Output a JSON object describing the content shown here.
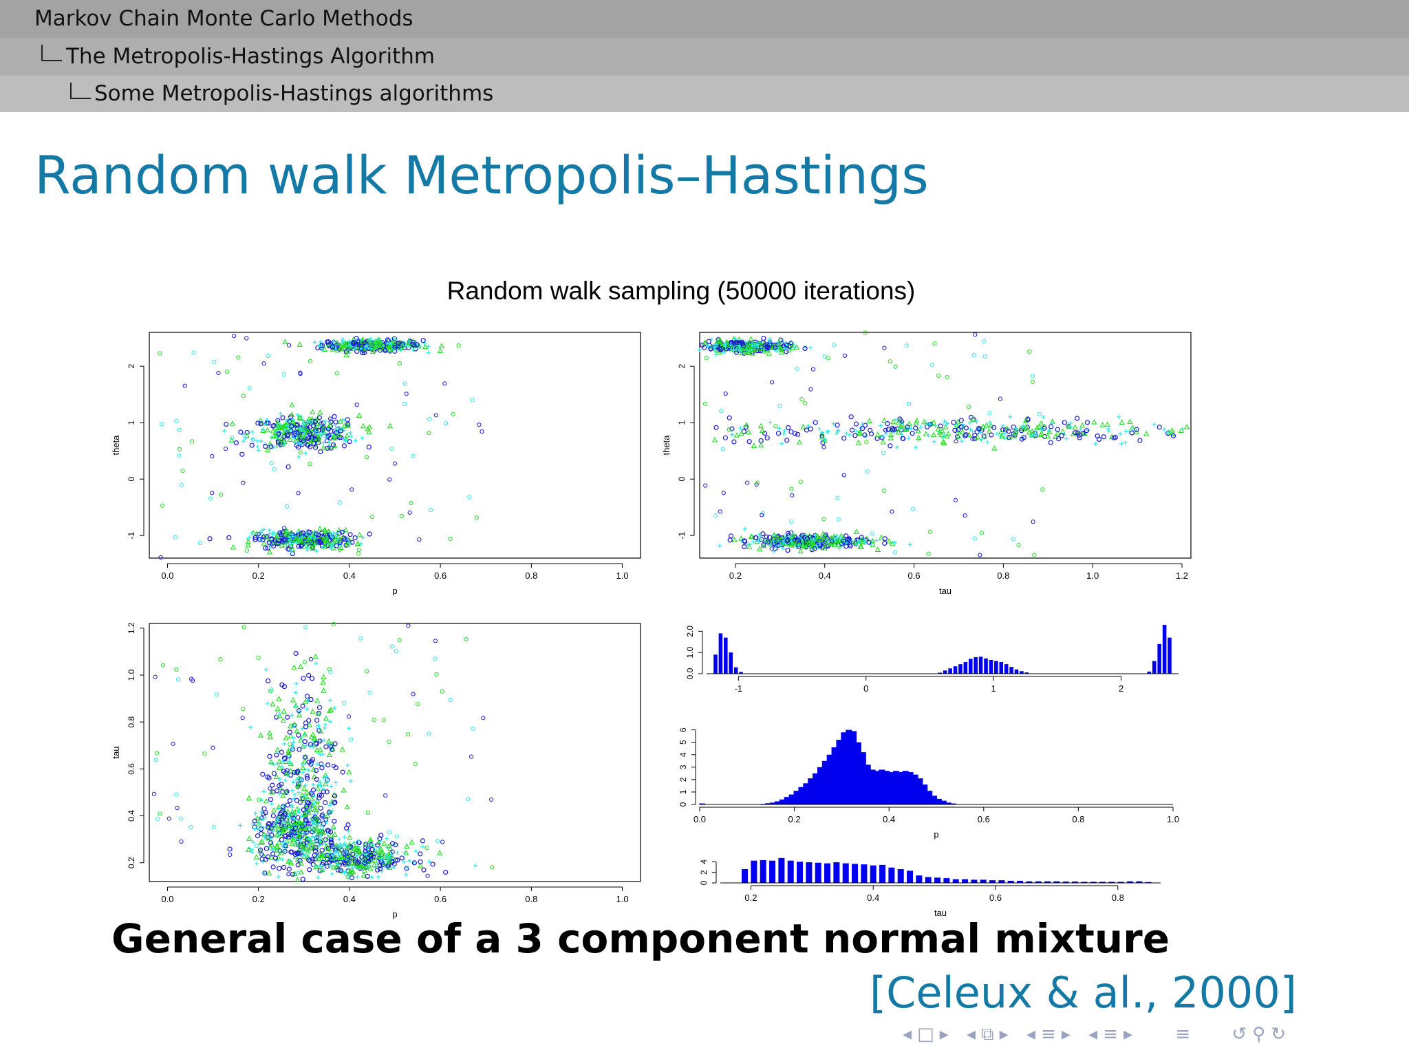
{
  "header": {
    "section": "Markov Chain Monte Carlo Methods",
    "subsection": "The Metropolis-Hastings Algorithm",
    "subsubsection": "Some Metropolis-Hastings algorithms"
  },
  "slide_title": "Random walk Metropolis–Hastings",
  "subtitle": "General case of a 3 component normal mixture",
  "citation": "[Celeux & al., 2000]",
  "nav_icons": [
    "nav-prev-frame-icon",
    "nav-frame-icon",
    "nav-next-frame-icon",
    "nav-prev-section-icon",
    "nav-section-icon",
    "nav-next-section-icon",
    "nav-prev-subsection-icon",
    "nav-subsection-icon",
    "nav-next-subsection-icon",
    "nav-prev-slide-icon",
    "nav-slide-icon",
    "nav-next-slide-icon",
    "nav-toc-icon",
    "nav-undo-icon",
    "nav-search-icon",
    "nav-redo-icon"
  ],
  "colors": {
    "series1": "#1a1ad6",
    "series2": "#22dd22",
    "series3": "#33e6e6",
    "bars": "#0000ee",
    "title": "#147aa5"
  },
  "figure_title": "Random walk sampling (50000 iterations)",
  "chart_data": [
    {
      "type": "scatter",
      "xlabel": "p",
      "ylabel": "theta",
      "xlim": [
        -0.04,
        1.04
      ],
      "ylim": [
        -1.4,
        2.6
      ],
      "xticks": [
        "0.0",
        "0.2",
        "0.4",
        "0.6",
        "0.8",
        "1.0"
      ],
      "yticks": [
        "-1",
        "0",
        "1",
        "2"
      ],
      "clusters": [
        {
          "x": 0.45,
          "y": 2.37,
          "sx": 0.055,
          "sy": 0.05
        },
        {
          "x": 0.3,
          "y": 0.82,
          "sx": 0.06,
          "sy": 0.15
        },
        {
          "x": 0.3,
          "y": -1.07,
          "sx": 0.055,
          "sy": 0.08
        }
      ],
      "series": [
        {
          "marker": "circle"
        },
        {
          "marker": "triangle"
        },
        {
          "marker": "plus"
        }
      ]
    },
    {
      "type": "scatter",
      "xlabel": "tau",
      "ylabel": "theta",
      "xlim": [
        0.12,
        1.22
      ],
      "ylim": [
        -1.4,
        2.6
      ],
      "xticks": [
        "0.2",
        "0.4",
        "0.6",
        "0.8",
        "1.0",
        "1.2"
      ],
      "yticks": [
        "-1",
        "0",
        "1",
        "2"
      ],
      "clusters": [
        {
          "x": 0.22,
          "y": 2.35,
          "sx": 0.05,
          "sy": 0.05
        },
        {
          "x": 0.7,
          "y": 0.85,
          "sx": 0.27,
          "sy": 0.12
        },
        {
          "x": 0.36,
          "y": -1.1,
          "sx": 0.07,
          "sy": 0.06
        }
      ],
      "series": [
        {
          "marker": "circle"
        },
        {
          "marker": "triangle"
        },
        {
          "marker": "plus"
        }
      ]
    },
    {
      "type": "scatter",
      "xlabel": "p",
      "ylabel": "tau",
      "xlim": [
        -0.04,
        1.04
      ],
      "ylim": [
        0.12,
        1.22
      ],
      "xticks": [
        "0.0",
        "0.2",
        "0.4",
        "0.6",
        "0.8",
        "1.0"
      ],
      "yticks": [
        "0.2",
        "0.4",
        "0.6",
        "0.8",
        "1.0",
        "1.2"
      ],
      "clusters": [
        {
          "x": 0.3,
          "y": 0.6,
          "sx": 0.04,
          "sy": 0.2
        },
        {
          "x": 0.28,
          "y": 0.32,
          "sx": 0.05,
          "sy": 0.07
        },
        {
          "x": 0.42,
          "y": 0.22,
          "sx": 0.06,
          "sy": 0.035
        }
      ],
      "series": [
        {
          "marker": "circle"
        },
        {
          "marker": "triangle"
        },
        {
          "marker": "plus"
        }
      ]
    },
    {
      "type": "bar",
      "xlabel": "",
      "ylabel": "",
      "xlim": [
        -1.25,
        2.45
      ],
      "ylim": [
        0,
        2.4
      ],
      "xticks": [
        "-1",
        "0",
        "1",
        "2"
      ],
      "yticks": [
        "0.0",
        "1.0",
        "2.0"
      ],
      "bins": [
        {
          "x": -1.18,
          "h": 0.9
        },
        {
          "x": -1.14,
          "h": 1.9
        },
        {
          "x": -1.1,
          "h": 1.7
        },
        {
          "x": -1.06,
          "h": 1.0
        },
        {
          "x": -1.02,
          "h": 0.3
        },
        {
          "x": -0.98,
          "h": 0.08
        },
        {
          "x": 0.58,
          "h": 0.05
        },
        {
          "x": 0.62,
          "h": 0.15
        },
        {
          "x": 0.66,
          "h": 0.25
        },
        {
          "x": 0.7,
          "h": 0.35
        },
        {
          "x": 0.74,
          "h": 0.45
        },
        {
          "x": 0.78,
          "h": 0.55
        },
        {
          "x": 0.82,
          "h": 0.7
        },
        {
          "x": 0.86,
          "h": 0.78
        },
        {
          "x": 0.9,
          "h": 0.8
        },
        {
          "x": 0.94,
          "h": 0.72
        },
        {
          "x": 0.98,
          "h": 0.65
        },
        {
          "x": 1.02,
          "h": 0.6
        },
        {
          "x": 1.06,
          "h": 0.55
        },
        {
          "x": 1.1,
          "h": 0.45
        },
        {
          "x": 1.14,
          "h": 0.32
        },
        {
          "x": 1.18,
          "h": 0.2
        },
        {
          "x": 1.22,
          "h": 0.12
        },
        {
          "x": 1.26,
          "h": 0.06
        },
        {
          "x": 2.22,
          "h": 0.1
        },
        {
          "x": 2.26,
          "h": 0.6
        },
        {
          "x": 2.3,
          "h": 1.4
        },
        {
          "x": 2.34,
          "h": 2.3
        },
        {
          "x": 2.38,
          "h": 1.7
        }
      ]
    },
    {
      "type": "bar",
      "xlabel": "p",
      "ylabel": "",
      "xlim": [
        0,
        1.0
      ],
      "ylim": [
        0,
        6.2
      ],
      "xticks": [
        "0.0",
        "0.2",
        "0.4",
        "0.6",
        "0.8",
        "1.0"
      ],
      "yticks": [
        "0",
        "1",
        "2",
        "3",
        "4",
        "5",
        "6"
      ],
      "bins": [
        {
          "x": 0.005,
          "h": 0.08
        },
        {
          "x": 0.135,
          "h": 0.05
        },
        {
          "x": 0.145,
          "h": 0.1
        },
        {
          "x": 0.155,
          "h": 0.15
        },
        {
          "x": 0.165,
          "h": 0.25
        },
        {
          "x": 0.175,
          "h": 0.4
        },
        {
          "x": 0.185,
          "h": 0.6
        },
        {
          "x": 0.195,
          "h": 0.8
        },
        {
          "x": 0.205,
          "h": 1.1
        },
        {
          "x": 0.215,
          "h": 1.4
        },
        {
          "x": 0.225,
          "h": 1.7
        },
        {
          "x": 0.235,
          "h": 2.1
        },
        {
          "x": 0.245,
          "h": 2.5
        },
        {
          "x": 0.255,
          "h": 3.0
        },
        {
          "x": 0.265,
          "h": 3.5
        },
        {
          "x": 0.275,
          "h": 4.0
        },
        {
          "x": 0.285,
          "h": 4.6
        },
        {
          "x": 0.295,
          "h": 5.2
        },
        {
          "x": 0.305,
          "h": 5.8
        },
        {
          "x": 0.315,
          "h": 6.0
        },
        {
          "x": 0.325,
          "h": 5.9
        },
        {
          "x": 0.335,
          "h": 5.0
        },
        {
          "x": 0.345,
          "h": 4.2
        },
        {
          "x": 0.355,
          "h": 3.2
        },
        {
          "x": 0.365,
          "h": 2.8
        },
        {
          "x": 0.375,
          "h": 2.7
        },
        {
          "x": 0.385,
          "h": 2.8
        },
        {
          "x": 0.395,
          "h": 2.7
        },
        {
          "x": 0.405,
          "h": 2.6
        },
        {
          "x": 0.415,
          "h": 2.7
        },
        {
          "x": 0.425,
          "h": 2.6
        },
        {
          "x": 0.435,
          "h": 2.7
        },
        {
          "x": 0.445,
          "h": 2.6
        },
        {
          "x": 0.455,
          "h": 2.4
        },
        {
          "x": 0.465,
          "h": 2.1
        },
        {
          "x": 0.475,
          "h": 1.6
        },
        {
          "x": 0.485,
          "h": 1.1
        },
        {
          "x": 0.495,
          "h": 0.7
        },
        {
          "x": 0.505,
          "h": 0.45
        },
        {
          "x": 0.515,
          "h": 0.3
        },
        {
          "x": 0.525,
          "h": 0.15
        },
        {
          "x": 0.535,
          "h": 0.08
        }
      ]
    },
    {
      "type": "bar",
      "xlabel": "tau",
      "ylabel": "",
      "xlim": [
        0.15,
        0.87
      ],
      "ylim": [
        0,
        5.2
      ],
      "xticks": [
        "0.2",
        "0.4",
        "0.6",
        "0.8"
      ],
      "yticks": [
        "0",
        "2",
        "4"
      ],
      "bins": [
        {
          "x": 0.19,
          "h": 2.6
        },
        {
          "x": 0.205,
          "h": 4.2
        },
        {
          "x": 0.22,
          "h": 4.3
        },
        {
          "x": 0.235,
          "h": 4.2
        },
        {
          "x": 0.25,
          "h": 4.7
        },
        {
          "x": 0.265,
          "h": 4.2
        },
        {
          "x": 0.28,
          "h": 4.0
        },
        {
          "x": 0.295,
          "h": 3.9
        },
        {
          "x": 0.31,
          "h": 3.8
        },
        {
          "x": 0.325,
          "h": 3.7
        },
        {
          "x": 0.34,
          "h": 3.9
        },
        {
          "x": 0.355,
          "h": 3.7
        },
        {
          "x": 0.37,
          "h": 3.6
        },
        {
          "x": 0.385,
          "h": 3.5
        },
        {
          "x": 0.4,
          "h": 3.3
        },
        {
          "x": 0.415,
          "h": 3.4
        },
        {
          "x": 0.43,
          "h": 2.9
        },
        {
          "x": 0.445,
          "h": 2.6
        },
        {
          "x": 0.46,
          "h": 2.3
        },
        {
          "x": 0.475,
          "h": 1.4
        },
        {
          "x": 0.49,
          "h": 1.1
        },
        {
          "x": 0.505,
          "h": 1.0
        },
        {
          "x": 0.52,
          "h": 0.9
        },
        {
          "x": 0.535,
          "h": 0.7
        },
        {
          "x": 0.55,
          "h": 0.7
        },
        {
          "x": 0.565,
          "h": 0.6
        },
        {
          "x": 0.58,
          "h": 0.6
        },
        {
          "x": 0.595,
          "h": 0.5
        },
        {
          "x": 0.61,
          "h": 0.5
        },
        {
          "x": 0.625,
          "h": 0.4
        },
        {
          "x": 0.64,
          "h": 0.4
        },
        {
          "x": 0.655,
          "h": 0.3
        },
        {
          "x": 0.67,
          "h": 0.3
        },
        {
          "x": 0.685,
          "h": 0.3
        },
        {
          "x": 0.7,
          "h": 0.3
        },
        {
          "x": 0.715,
          "h": 0.25
        },
        {
          "x": 0.73,
          "h": 0.25
        },
        {
          "x": 0.745,
          "h": 0.2
        },
        {
          "x": 0.76,
          "h": 0.2
        },
        {
          "x": 0.775,
          "h": 0.2
        },
        {
          "x": 0.79,
          "h": 0.2
        },
        {
          "x": 0.805,
          "h": 0.2
        },
        {
          "x": 0.82,
          "h": 0.3
        },
        {
          "x": 0.835,
          "h": 0.3
        },
        {
          "x": 0.85,
          "h": 0.15
        }
      ]
    }
  ]
}
